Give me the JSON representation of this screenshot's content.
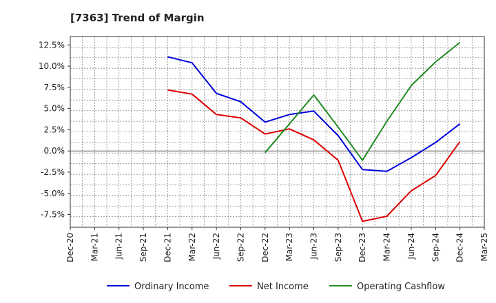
{
  "chart_data": {
    "type": "line",
    "title": "[7363]  Trend of Margin",
    "xlabel": "",
    "ylabel": "",
    "x_ticks": [
      "Dec-20",
      "Mar-21",
      "Jun-21",
      "Sep-21",
      "Dec-21",
      "Mar-22",
      "Jun-22",
      "Sep-22",
      "Dec-22",
      "Mar-23",
      "Jun-23",
      "Sep-23",
      "Dec-23",
      "Mar-24",
      "Jun-24",
      "Sep-24",
      "Dec-24",
      "Mar-25"
    ],
    "y_ticks": [
      12.5,
      10.0,
      7.5,
      5.0,
      2.5,
      0.0,
      -2.5,
      -5.0,
      -7.5
    ],
    "y_tick_labels": [
      "12.5%",
      "10.0%",
      "7.5%",
      "5.0%",
      "2.5%",
      "0.0%",
      "-2.5%",
      "-5.0%",
      "-7.5%"
    ],
    "ylim": [
      -9.0,
      13.5
    ],
    "grid": true,
    "legend_position": "bottom",
    "series": [
      {
        "name": "Ordinary Income",
        "color": "#0000dd",
        "x": [
          "Dec-21",
          "Mar-22",
          "Jun-22",
          "Sep-22",
          "Dec-22",
          "Mar-23",
          "Jun-23",
          "Sep-23",
          "Dec-23",
          "Mar-24",
          "Jun-24",
          "Sep-24",
          "Dec-24"
        ],
        "values": [
          11.1,
          10.4,
          6.8,
          5.8,
          3.4,
          4.3,
          4.7,
          1.8,
          -2.2,
          -2.4,
          -0.8,
          1.0,
          3.2
        ]
      },
      {
        "name": "Net Income",
        "color": "#dd0000",
        "x": [
          "Dec-21",
          "Mar-22",
          "Jun-22",
          "Sep-22",
          "Dec-22",
          "Mar-23",
          "Jun-23",
          "Sep-23",
          "Dec-23",
          "Mar-24",
          "Jun-24",
          "Sep-24",
          "Dec-24"
        ],
        "values": [
          7.2,
          6.7,
          4.3,
          3.9,
          2.0,
          2.6,
          1.3,
          -1.1,
          -8.3,
          -7.7,
          -4.7,
          -2.9,
          1.1
        ]
      },
      {
        "name": "Operating Cashflow",
        "color": "#228b22",
        "x": [
          "Dec-22",
          "Mar-23",
          "Jun-23",
          "Sep-23",
          "Dec-23",
          "Mar-24",
          "Jun-24",
          "Sep-24",
          "Dec-24"
        ],
        "values": [
          -0.2,
          3.2,
          6.6,
          2.8,
          -1.1,
          3.5,
          7.7,
          10.5,
          12.8
        ]
      }
    ]
  }
}
